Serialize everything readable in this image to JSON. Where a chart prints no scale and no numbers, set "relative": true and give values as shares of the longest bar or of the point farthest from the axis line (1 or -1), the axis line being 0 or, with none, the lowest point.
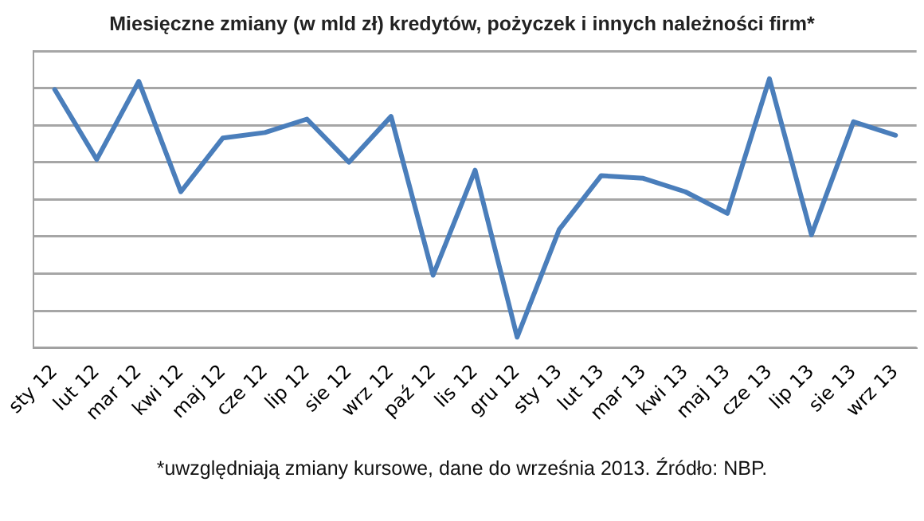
{
  "chart_data": {
    "type": "line",
    "title": "Miesięczne zmiany (w mld zł) kredytów, pożyczek i innych należności firm*",
    "categories": [
      "sty 12",
      "lut 12",
      "mar 12",
      "kwi 12",
      "maj 12",
      "cze 12",
      "lip 12",
      "sie 12",
      "wrz 12",
      "paź 12",
      "lis 12",
      "gru 12",
      "sty 13",
      "lut 13",
      "mar 13",
      "kwi 13",
      "maj 13",
      "cze 13",
      "lip 13",
      "sie 13",
      "wrz 13"
    ],
    "series": [
      {
        "color": "#4a7ebb",
        "values": [
          0.96,
          0.7,
          0.99,
          0.58,
          0.78,
          0.8,
          0.85,
          0.69,
          0.86,
          0.27,
          0.66,
          0.04,
          0.44,
          0.64,
          0.63,
          0.58,
          0.5,
          1,
          0.42,
          0.84,
          0.79
        ]
      }
    ],
    "relative": true,
    "grid": "y",
    "legend": false,
    "marker": "none",
    "line_style": "solid",
    "annotations": [
      "*uwzględniają zmiany kursowe, dane do września 2013. Źródło: NBP."
    ]
  }
}
